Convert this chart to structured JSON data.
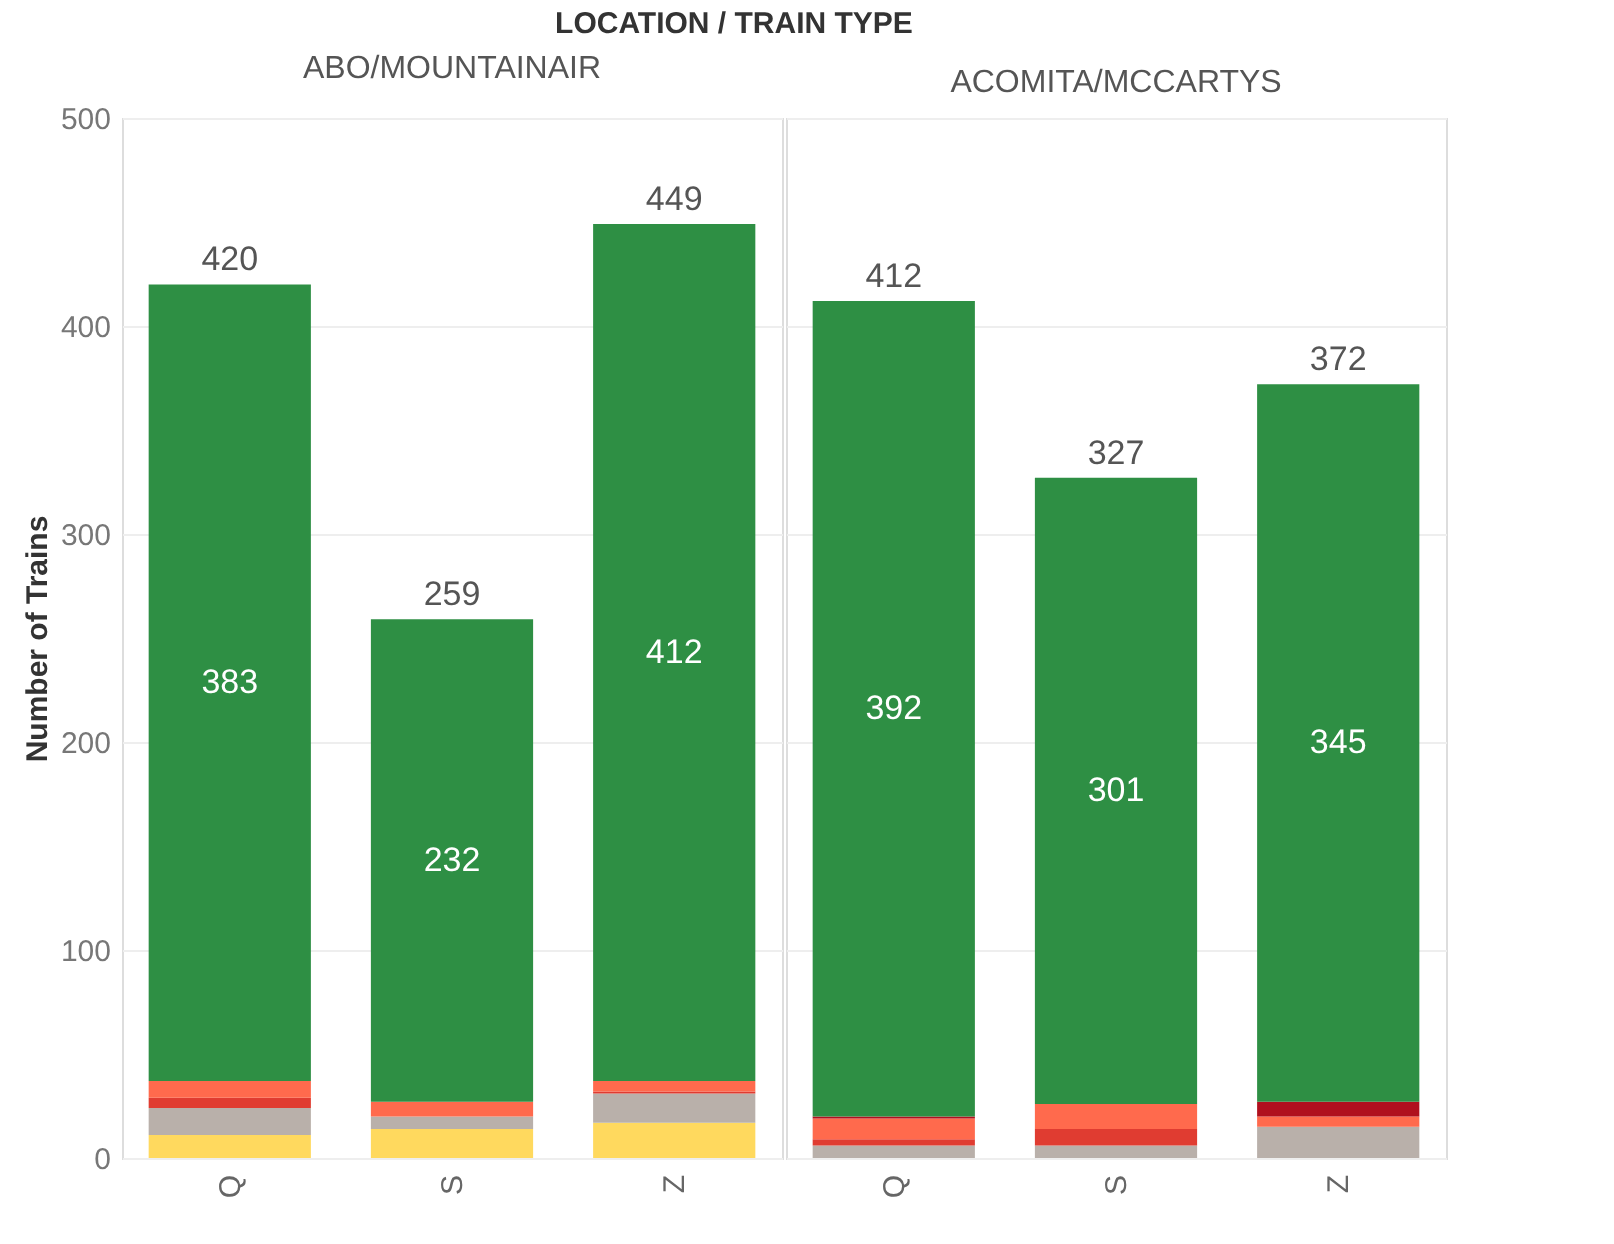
{
  "chart_data": [
    {
      "type": "bar",
      "title": "ABO/MOUNTAINAIR",
      "annotations": [
        "LOCATION / TRAIN TYPE"
      ],
      "ylabel": "Number of Trains",
      "categories": [
        "Q",
        "S",
        "Z"
      ],
      "stacked": true,
      "ylim": [
        0,
        500
      ],
      "yticks": [
        0,
        100,
        200,
        300,
        400,
        500
      ],
      "grid": "y",
      "legend": false,
      "series": [
        {
          "color": "#ffd95e",
          "values": [
            11,
            14,
            17
          ]
        },
        {
          "color": "#b9b0aa",
          "values": [
            13,
            6,
            14
          ]
        },
        {
          "color": "#e03c31",
          "values": [
            5,
            0,
            1
          ]
        },
        {
          "color": "#ff6a4d",
          "values": [
            8,
            7,
            5
          ]
        },
        {
          "color": "#b0101e",
          "values": [
            0,
            0,
            0
          ]
        },
        {
          "color": "#2e8f44",
          "values": [
            383,
            232,
            412
          ],
          "value_labels": [
            "383",
            "232",
            "412"
          ]
        }
      ],
      "totals": [
        "420",
        "259",
        "449"
      ]
    },
    {
      "type": "bar",
      "title": "ACOMITA/MCCARTYS",
      "categories": [
        "Q",
        "S",
        "Z"
      ],
      "stacked": true,
      "ylim": [
        0,
        500
      ],
      "yticks": [
        0,
        100,
        200,
        300,
        400,
        500
      ],
      "grid": "y",
      "legend": false,
      "tick_labels": "x",
      "series": [
        {
          "color": "#ffd95e",
          "values": [
            0,
            0,
            0
          ]
        },
        {
          "color": "#b9b0aa",
          "values": [
            6,
            6,
            15
          ]
        },
        {
          "color": "#e03c31",
          "values": [
            3,
            8,
            0
          ]
        },
        {
          "color": "#ff6a4d",
          "values": [
            10,
            12,
            5
          ]
        },
        {
          "color": "#b0101e",
          "values": [
            1,
            0,
            7
          ]
        },
        {
          "color": "#2e8f44",
          "values": [
            392,
            301,
            345
          ],
          "value_labels": [
            "392",
            "301",
            "345"
          ]
        }
      ],
      "totals": [
        "412",
        "327",
        "372"
      ]
    }
  ]
}
